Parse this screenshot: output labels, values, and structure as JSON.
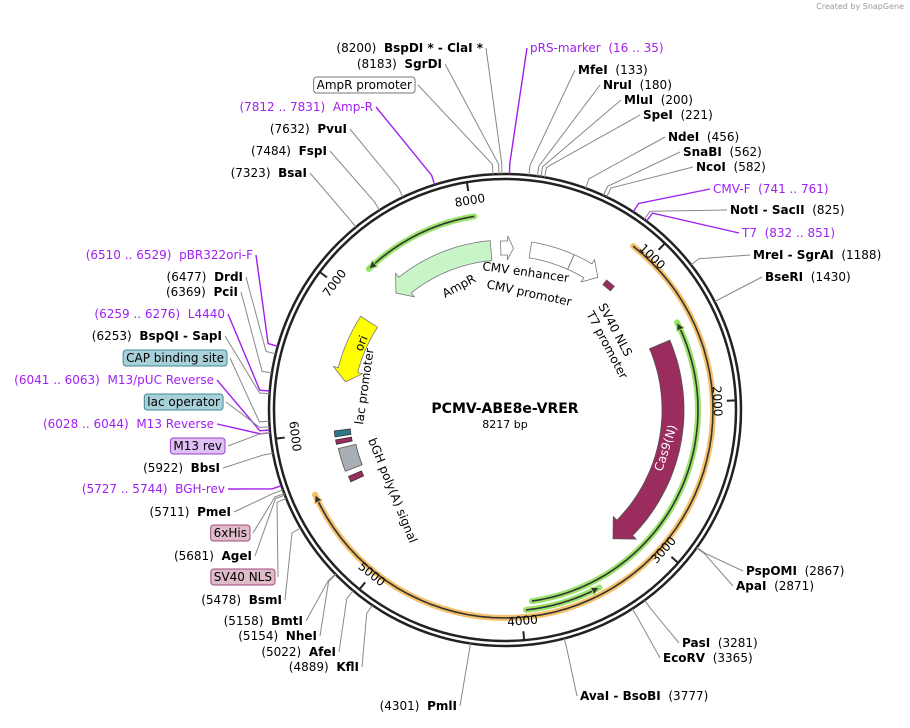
{
  "credit": "Created by SnapGene",
  "plasmid": {
    "name": "PCMV-ABE8e-VRER",
    "length_label": "8217 bp",
    "length": 8217
  },
  "ticks": [
    "1000",
    "2000",
    "3000",
    "4000",
    "5000",
    "6000",
    "7000",
    "8000"
  ],
  "colors": {
    "enzyme": "#000000",
    "primer": "#a020f0",
    "ampr": "#c8f5c8",
    "ori": "#ffff00",
    "cas9": "#9b2c5e",
    "green_arc": "#9be36b",
    "orange_arc": "#f5c26b"
  },
  "right_labels": [
    {
      "type": "primer",
      "name": "pRS-marker",
      "pos": "(16 .. 35)"
    },
    {
      "type": "enzyme",
      "name": "MfeI",
      "pos": "(133)"
    },
    {
      "type": "enzyme",
      "name": "NruI",
      "pos": "(180)"
    },
    {
      "type": "enzyme",
      "name": "MluI",
      "pos": "(200)"
    },
    {
      "type": "enzyme",
      "name": "SpeI",
      "pos": "(221)"
    },
    {
      "type": "enzyme",
      "name": "NdeI",
      "pos": "(456)"
    },
    {
      "type": "enzyme",
      "name": "SnaBI",
      "pos": "(562)"
    },
    {
      "type": "enzyme",
      "name": "NcoI",
      "pos": "(582)"
    },
    {
      "type": "primer",
      "name": "CMV-F",
      "pos": "(741 .. 761)"
    },
    {
      "type": "enzyme",
      "name": "NotI  - SacII",
      "pos": "(825)"
    },
    {
      "type": "primer",
      "name": "T7",
      "pos": "(832 .. 851)"
    },
    {
      "type": "enzyme",
      "name": "MreI  - SgrAI",
      "pos": "(1188)"
    },
    {
      "type": "enzyme",
      "name": "BseRI",
      "pos": "(1430)"
    },
    {
      "type": "enzyme",
      "name": "PspOMI",
      "pos": "(2867)"
    },
    {
      "type": "enzyme",
      "name": "ApaI",
      "pos": "(2871)"
    },
    {
      "type": "enzyme",
      "name": "PasI",
      "pos": "(3281)"
    },
    {
      "type": "enzyme",
      "name": "EcoRV",
      "pos": "(3365)"
    },
    {
      "type": "enzyme",
      "name": "AvaI  - BsoBI",
      "pos": "(3777)"
    }
  ],
  "left_labels": [
    {
      "type": "enzyme",
      "name": "BspDI *  - ClaI *",
      "pos": "(8200)"
    },
    {
      "type": "enzyme",
      "name": "SgrDI",
      "pos": "(8183)"
    },
    {
      "type": "box",
      "name": "AmpR promoter",
      "style": "white"
    },
    {
      "type": "primer",
      "name": "Amp-R",
      "pos": "(7812 .. 7831)"
    },
    {
      "type": "enzyme",
      "name": "PvuI",
      "pos": "(7632)"
    },
    {
      "type": "enzyme",
      "name": "FspI",
      "pos": "(7484)"
    },
    {
      "type": "enzyme",
      "name": "BsaI",
      "pos": "(7323)"
    },
    {
      "type": "primer",
      "name": "pBR322ori-F",
      "pos": "(6510 .. 6529)"
    },
    {
      "type": "enzyme",
      "name": "DrdI",
      "pos": "(6477)"
    },
    {
      "type": "enzyme",
      "name": "PciI",
      "pos": "(6369)"
    },
    {
      "type": "primer",
      "name": "L4440",
      "pos": "(6259 .. 6276)"
    },
    {
      "type": "enzyme",
      "name": "BspQI  - SapI",
      "pos": "(6253)"
    },
    {
      "type": "box",
      "name": "CAP binding site",
      "style": "teal"
    },
    {
      "type": "primer",
      "name": "M13/pUC Reverse",
      "pos": "(6041 .. 6063)"
    },
    {
      "type": "box",
      "name": "lac operator",
      "style": "teal"
    },
    {
      "type": "primer",
      "name": "M13 Reverse",
      "pos": "(6028 .. 6044)"
    },
    {
      "type": "box",
      "name": "M13 rev",
      "style": "violet"
    },
    {
      "type": "enzyme",
      "name": "BbsI",
      "pos": "(5922)"
    },
    {
      "type": "primer",
      "name": "BGH-rev",
      "pos": "(5727 .. 5744)"
    },
    {
      "type": "enzyme",
      "name": "PmeI",
      "pos": "(5711)"
    },
    {
      "type": "box",
      "name": "6xHis",
      "style": "pink"
    },
    {
      "type": "enzyme",
      "name": "AgeI",
      "pos": "(5681)"
    },
    {
      "type": "box",
      "name": "SV40 NLS",
      "style": "pink"
    },
    {
      "type": "enzyme",
      "name": "BsmI",
      "pos": "(5478)"
    },
    {
      "type": "enzyme",
      "name": "BmtI",
      "pos": "(5158)"
    },
    {
      "type": "enzyme",
      "name": "NheI",
      "pos": "(5154)"
    },
    {
      "type": "enzyme",
      "name": "AfeI",
      "pos": "(5022)"
    },
    {
      "type": "enzyme",
      "name": "KflI",
      "pos": "(4889)"
    },
    {
      "type": "enzyme",
      "name": "PmlI",
      "pos": "(4301)"
    }
  ],
  "features": {
    "ampr": "AmpR",
    "cmv_enhancer": "CMV enhancer",
    "cmv_promoter": "CMV promoter",
    "sv40_nls": "SV40 NLS",
    "t7_promoter": "T7 promoter",
    "ori": "ori",
    "lac_promoter": "lac promoter",
    "bgh": "bGH poly(A) signal",
    "cas9": "Cas9(N)"
  }
}
